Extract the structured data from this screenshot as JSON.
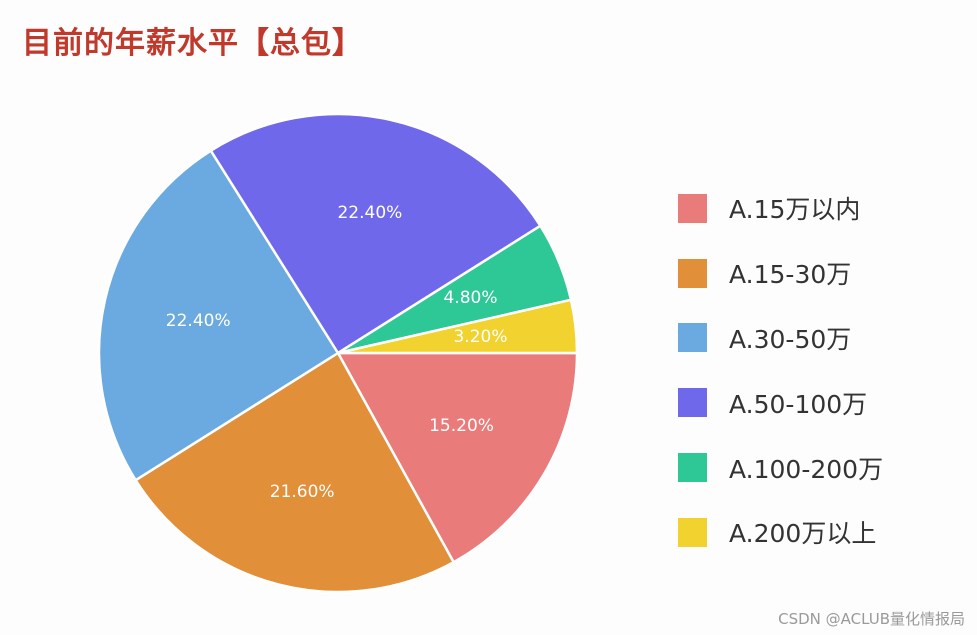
{
  "title": "目前的年薪水平【总包】",
  "watermark": "CSDN @ACLUB量化情报局",
  "chart_data": {
    "type": "pie",
    "title": "目前的年薪水平【总包】",
    "legend_position": "right",
    "slices": [
      {
        "label": "A.15万以内",
        "value": 15.2,
        "value_label": "15.20%",
        "color": "#ea7b7b"
      },
      {
        "label": "A.15-30万",
        "value": 21.6,
        "value_label": "21.60%",
        "color": "#e28f39"
      },
      {
        "label": "A.30-50万",
        "value": 22.4,
        "value_label": "22.40%",
        "color": "#6aaae0"
      },
      {
        "label": "A.50-100万",
        "value": 22.4,
        "value_label": "22.40%",
        "color": "#7068ea"
      },
      {
        "label": "A.100-200万",
        "value": 4.8,
        "value_label": "4.80%",
        "color": "#2ec896"
      },
      {
        "label": "A.200万以上",
        "value": 3.2,
        "value_label": "3.20%",
        "color": "#f2d22e"
      }
    ]
  }
}
